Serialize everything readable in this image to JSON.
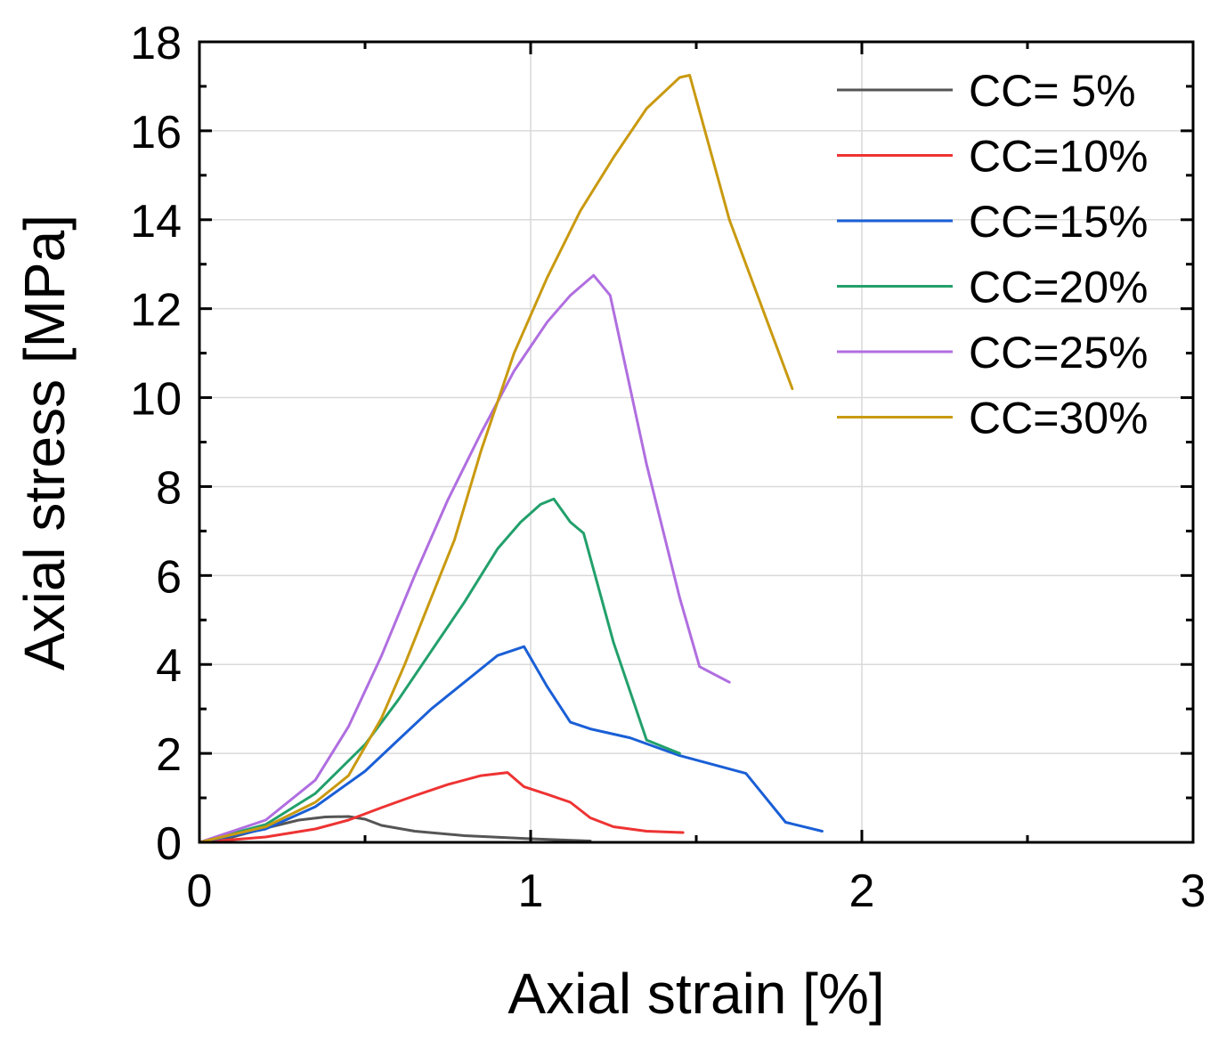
{
  "chart_data": {
    "type": "line",
    "title": "",
    "xlabel": "Axial strain [%]",
    "ylabel": "Axial stress [MPa]",
    "xlim": [
      0,
      3
    ],
    "ylim": [
      0,
      18
    ],
    "xticks": [
      0,
      1,
      2,
      3
    ],
    "yticks": [
      0,
      2,
      4,
      6,
      8,
      10,
      12,
      14,
      16,
      18
    ],
    "grid": true,
    "legend_position": "top-right",
    "series": [
      {
        "name": "CC= 5%",
        "color": "#555555",
        "x": [
          0,
          0.1,
          0.2,
          0.3,
          0.38,
          0.45,
          0.5,
          0.55,
          0.65,
          0.8,
          1.0,
          1.18
        ],
        "y": [
          0,
          0.12,
          0.32,
          0.5,
          0.57,
          0.58,
          0.52,
          0.38,
          0.25,
          0.15,
          0.08,
          0.03
        ]
      },
      {
        "name": "CC=10%",
        "color": "#ee3333",
        "x": [
          0,
          0.2,
          0.35,
          0.45,
          0.55,
          0.65,
          0.75,
          0.85,
          0.93,
          0.98,
          1.05,
          1.12,
          1.18,
          1.25,
          1.35,
          1.46
        ],
        "y": [
          0,
          0.12,
          0.3,
          0.5,
          0.78,
          1.05,
          1.3,
          1.5,
          1.57,
          1.25,
          1.08,
          0.9,
          0.55,
          0.35,
          0.25,
          0.22
        ]
      },
      {
        "name": "CC=15%",
        "color": "#1a5fd6",
        "x": [
          0,
          0.2,
          0.35,
          0.5,
          0.6,
          0.7,
          0.8,
          0.9,
          0.98,
          1.05,
          1.12,
          1.18,
          1.3,
          1.45,
          1.55,
          1.65,
          1.77,
          1.88
        ],
        "y": [
          0,
          0.3,
          0.8,
          1.6,
          2.3,
          3.0,
          3.6,
          4.2,
          4.4,
          3.5,
          2.7,
          2.55,
          2.35,
          1.95,
          1.75,
          1.55,
          0.45,
          0.25
        ]
      },
      {
        "name": "CC=20%",
        "color": "#22a06b",
        "x": [
          0,
          0.2,
          0.35,
          0.5,
          0.6,
          0.7,
          0.8,
          0.9,
          0.97,
          1.03,
          1.07,
          1.12,
          1.16,
          1.25,
          1.35,
          1.45
        ],
        "y": [
          0,
          0.4,
          1.1,
          2.2,
          3.2,
          4.3,
          5.4,
          6.6,
          7.2,
          7.6,
          7.72,
          7.2,
          6.95,
          4.5,
          2.3,
          2.0
        ]
      },
      {
        "name": "CC=25%",
        "color": "#b06ee0",
        "x": [
          0,
          0.2,
          0.35,
          0.45,
          0.55,
          0.65,
          0.75,
          0.85,
          0.95,
          1.05,
          1.12,
          1.19,
          1.24,
          1.35,
          1.45,
          1.51,
          1.6
        ],
        "y": [
          0,
          0.5,
          1.4,
          2.6,
          4.2,
          6.0,
          7.7,
          9.2,
          10.6,
          11.7,
          12.3,
          12.75,
          12.3,
          8.5,
          5.5,
          3.95,
          3.6
        ]
      },
      {
        "name": "CC=30%",
        "color": "#c99a10",
        "x": [
          0,
          0.2,
          0.35,
          0.45,
          0.55,
          0.62,
          0.7,
          0.77,
          0.85,
          0.95,
          1.05,
          1.15,
          1.25,
          1.35,
          1.45,
          1.48,
          1.6,
          1.7,
          1.79
        ],
        "y": [
          0,
          0.35,
          0.9,
          1.5,
          2.8,
          4.0,
          5.5,
          6.8,
          8.8,
          11.0,
          12.7,
          14.2,
          15.4,
          16.5,
          17.2,
          17.25,
          14.0,
          12.0,
          10.2
        ]
      }
    ]
  }
}
